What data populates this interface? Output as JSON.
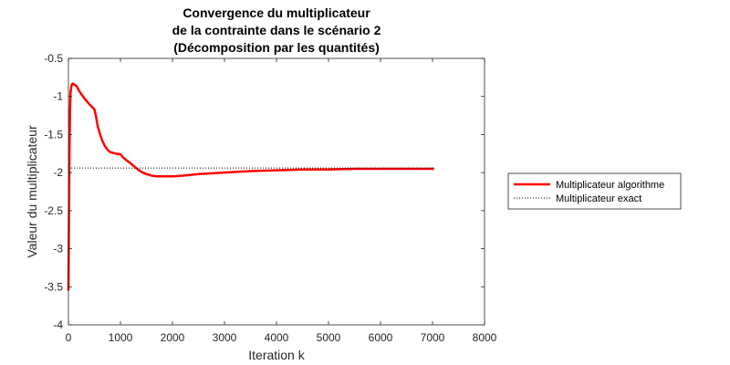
{
  "chart_data": {
    "type": "line",
    "title": [
      "Convergence du multiplicateur",
      "de la contrainte dans le scénario 2",
      "(Décomposition par les quantités)"
    ],
    "xlabel": "Iteration k",
    "ylabel": "Valeur du multiplicateur",
    "xlim": [
      0,
      8000
    ],
    "ylim": [
      -4,
      -0.5
    ],
    "xticks": [
      0,
      1000,
      2000,
      3000,
      4000,
      5000,
      6000,
      7000,
      8000
    ],
    "yticks": [
      -4,
      -3.5,
      -3,
      -2.5,
      -2,
      -1.5,
      -1,
      -0.5
    ],
    "xtick_labels": [
      "0",
      "1000",
      "2000",
      "3000",
      "4000",
      "5000",
      "6000",
      "7000",
      "8000"
    ],
    "ytick_labels": [
      "-4",
      "-3.5",
      "-3",
      "-2.5",
      "-2",
      "-1.5",
      "-1",
      "-0.5"
    ],
    "grid": false,
    "legend_position": "outside-right",
    "series": [
      {
        "name": "Multiplicateur algorithme",
        "color": "#ff0000",
        "style": "solid",
        "x": [
          0,
          10,
          20,
          30,
          40,
          60,
          80,
          100,
          150,
          200,
          300,
          400,
          500,
          530,
          560,
          600,
          650,
          700,
          750,
          800,
          900,
          1000,
          1050,
          1100,
          1200,
          1300,
          1400,
          1500,
          1600,
          1700,
          1800,
          1900,
          2000,
          2200,
          2500,
          3000,
          3500,
          4000,
          4500,
          5000,
          5500,
          6000,
          6500,
          7030
        ],
        "y": [
          -3.55,
          -2.6,
          -1.7,
          -1.2,
          -0.95,
          -0.85,
          -0.83,
          -0.84,
          -0.86,
          -0.92,
          -1.02,
          -1.1,
          -1.17,
          -1.26,
          -1.38,
          -1.48,
          -1.58,
          -1.65,
          -1.7,
          -1.73,
          -1.75,
          -1.76,
          -1.8,
          -1.83,
          -1.88,
          -1.94,
          -1.99,
          -2.02,
          -2.04,
          -2.05,
          -2.05,
          -2.05,
          -2.05,
          -2.04,
          -2.02,
          -2.0,
          -1.98,
          -1.97,
          -1.96,
          -1.96,
          -1.95,
          -1.95,
          -1.95,
          -1.95
        ]
      },
      {
        "name": "Multiplicateur exact",
        "color": "#000000",
        "style": "dotted",
        "x": [
          0,
          7030
        ],
        "y": [
          -1.94,
          -1.94
        ]
      }
    ]
  }
}
